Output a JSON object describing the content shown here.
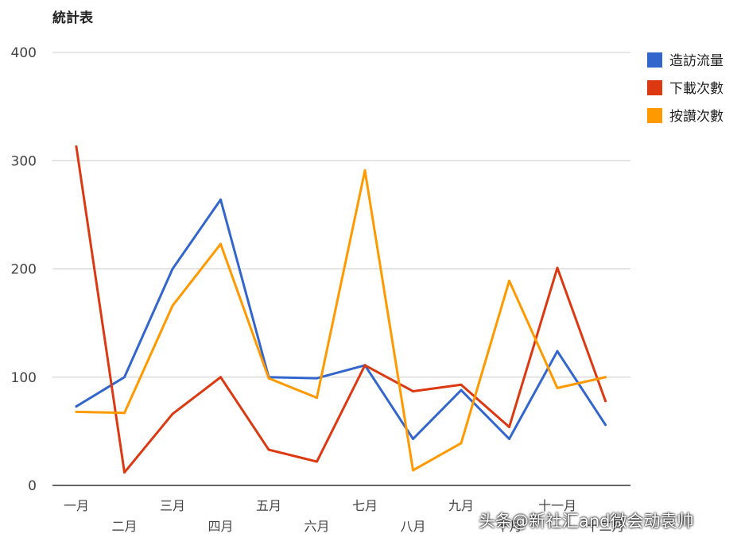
{
  "chart_data": {
    "type": "line",
    "title": "統計表",
    "categories": [
      "一月",
      "二月",
      "三月",
      "四月",
      "五月",
      "六月",
      "七月",
      "八月",
      "九月",
      "十月",
      "十一月",
      "十二月"
    ],
    "ylim": [
      0,
      400
    ],
    "yticks": [
      0,
      100,
      200,
      300,
      400
    ],
    "grid": true,
    "legend_position": "right",
    "series": [
      {
        "name": "造訪流量",
        "color": "#3366cc",
        "values": [
          73,
          100,
          200,
          264,
          100,
          99,
          111,
          43,
          88,
          43,
          124,
          56
        ]
      },
      {
        "name": "下載次數",
        "color": "#dc3912",
        "values": [
          313,
          12,
          66,
          100,
          33,
          22,
          111,
          87,
          93,
          54,
          201,
          78
        ]
      },
      {
        "name": "按讚次數",
        "color": "#ff9900",
        "values": [
          68,
          67,
          166,
          223,
          99,
          81,
          291,
          14,
          39,
          189,
          90,
          100
        ]
      }
    ]
  },
  "watermark": "头条@新社汇and微会动袁帅"
}
